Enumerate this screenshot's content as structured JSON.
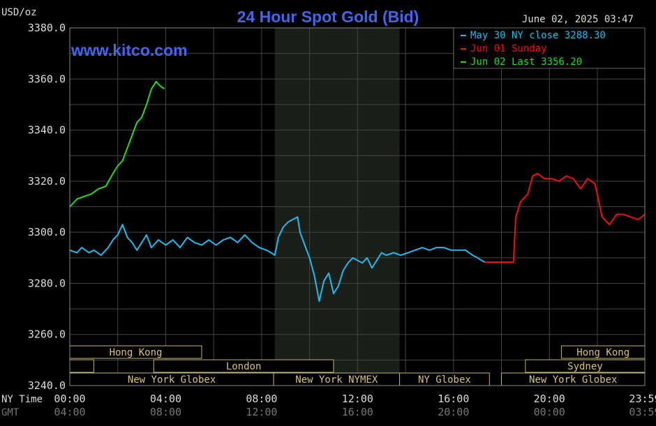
{
  "chart_data": {
    "type": "line",
    "title": "24 Hour Spot Gold (Bid)",
    "watermark": "www.kitco.com",
    "ylabel": "USD/oz",
    "date_time": "June 02, 2025 03:47",
    "ylim": [
      3240,
      3380
    ],
    "y_ticks": [
      "3380.0",
      "3360.0",
      "3340.0",
      "3320.0",
      "3300.0",
      "3280.0",
      "3260.0",
      "3240.0"
    ],
    "x_label_ny": "NY Time",
    "x_label_gmt": "GMT",
    "x_ticks_ny": [
      "00:00",
      "04:00",
      "08:00",
      "12:00",
      "16:00",
      "20:00",
      "23:59"
    ],
    "x_ticks_gmt": [
      "04:00",
      "08:00",
      "12:00",
      "16:00",
      "20:00",
      "00:00",
      "03:59"
    ],
    "grid": true,
    "legend_position": "top-right",
    "shaded_period": [
      8.55,
      13.75
    ],
    "sessions": [
      {
        "name": "Hong Kong",
        "start": 0,
        "end": 5.5,
        "row": 0
      },
      {
        "name": "",
        "start": 0,
        "end": 1.0,
        "row": 1
      },
      {
        "name": "London",
        "start": 3.5,
        "end": 11.0,
        "row": 1
      },
      {
        "name": "New York Globex",
        "start": 0,
        "end": 8.5,
        "row": 2
      },
      {
        "name": "New York NYMEX",
        "start": 8.5,
        "end": 13.75,
        "row": 2
      },
      {
        "name": "NY Globex",
        "start": 13.75,
        "end": 17.5,
        "row": 2
      },
      {
        "name": "Hong Kong",
        "start": 20.5,
        "end": 23.98,
        "row": 0
      },
      {
        "name": "Sydney",
        "start": 19.0,
        "end": 23.98,
        "row": 1
      },
      {
        "name": "New York Globex",
        "start": 18.0,
        "end": 23.98,
        "row": 2
      }
    ],
    "series": [
      {
        "name": "May 30 NY close 3288.30",
        "color": "#22bbee",
        "x": [
          0.0,
          0.3,
          0.5,
          0.8,
          1.0,
          1.3,
          1.6,
          1.8,
          2.0,
          2.2,
          2.4,
          2.6,
          2.8,
          3.0,
          3.2,
          3.4,
          3.7,
          4.0,
          4.3,
          4.6,
          4.9,
          5.2,
          5.5,
          5.8,
          6.1,
          6.4,
          6.7,
          7.0,
          7.3,
          7.6,
          7.9,
          8.2,
          8.4,
          8.55,
          8.7,
          8.9,
          9.1,
          9.3,
          9.5,
          9.6,
          9.8,
          10.0,
          10.2,
          10.4,
          10.6,
          10.8,
          11.0,
          11.2,
          11.4,
          11.6,
          11.8,
          12.0,
          12.2,
          12.4,
          12.6,
          12.8,
          13.0,
          13.2,
          13.5,
          13.8,
          14.1,
          14.4,
          14.7,
          15.0,
          15.3,
          15.6,
          15.9,
          16.2,
          16.5,
          16.8,
          17.0,
          17.3
        ],
        "values": [
          3293,
          3292,
          3294,
          3292,
          3293,
          3291,
          3294,
          3297,
          3299,
          3303,
          3298,
          3296,
          3293,
          3296,
          3299,
          3294,
          3297,
          3295,
          3297,
          3294,
          3298,
          3296,
          3295,
          3297,
          3295,
          3297,
          3298,
          3296,
          3299,
          3296,
          3294,
          3293,
          3292,
          3291,
          3298,
          3302,
          3304,
          3305,
          3306,
          3300,
          3295,
          3290,
          3283,
          3273,
          3281,
          3284,
          3276,
          3279,
          3285,
          3288,
          3290,
          3289,
          3288,
          3290,
          3286,
          3289,
          3292,
          3291,
          3292,
          3291,
          3292,
          3293,
          3294,
          3293,
          3294,
          3294,
          3293,
          3293,
          3293,
          3291,
          3290,
          3288.3
        ]
      },
      {
        "name": "Jun 01 Sunday",
        "color": "#ee1111",
        "x": [
          17.3,
          18.0,
          18.5,
          18.6,
          18.8,
          19.1,
          19.3,
          19.5,
          19.8,
          20.1,
          20.4,
          20.7,
          21.0,
          21.3,
          21.6,
          21.9,
          22.2,
          22.5,
          22.8,
          23.1,
          23.4,
          23.7,
          23.98
        ],
        "values": [
          3288.3,
          3288.3,
          3288.3,
          3306,
          3312,
          3315,
          3322,
          3323,
          3321,
          3321,
          3320,
          3322,
          3321,
          3317,
          3321,
          3319,
          3306,
          3303,
          3307,
          3307,
          3306,
          3305,
          3307
        ]
      },
      {
        "name": "Jun 02 Last 3356.20",
        "color": "#22dd22",
        "x": [
          0.0,
          0.3,
          0.6,
          0.9,
          1.2,
          1.5,
          1.8,
          2.0,
          2.2,
          2.4,
          2.6,
          2.8,
          3.0,
          3.2,
          3.4,
          3.6,
          3.8,
          3.95
        ],
        "values": [
          3310,
          3313,
          3314,
          3315,
          3317,
          3318,
          3323,
          3326,
          3328,
          3333,
          3338,
          3343,
          3345,
          3350,
          3356,
          3359,
          3357,
          3356.2
        ]
      }
    ]
  }
}
